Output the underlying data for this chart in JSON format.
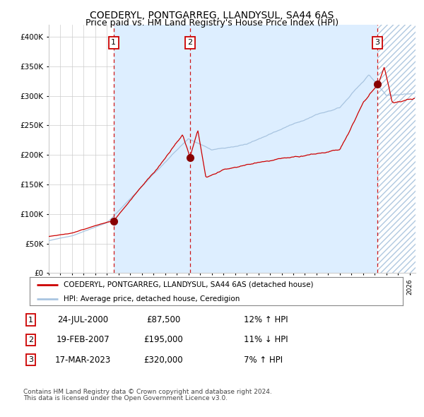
{
  "title": "COEDERYL, PONTGARREG, LLANDYSUL, SA44 6AS",
  "subtitle": "Price paid vs. HM Land Registry's House Price Index (HPI)",
  "legend_red": "COEDERYL, PONTGARREG, LLANDYSUL, SA44 6AS (detached house)",
  "legend_blue": "HPI: Average price, detached house, Ceredigion",
  "sale1_date": "24-JUL-2000",
  "sale1_price": 87500,
  "sale1_hpi": "12% ↑ HPI",
  "sale1_year": 2000.56,
  "sale2_date": "19-FEB-2007",
  "sale2_price": 195000,
  "sale2_hpi": "11% ↓ HPI",
  "sale2_year": 2007.13,
  "sale3_date": "17-MAR-2023",
  "sale3_price": 320000,
  "sale3_hpi": "7% ↑ HPI",
  "sale3_year": 2023.21,
  "footnote1": "Contains HM Land Registry data © Crown copyright and database right 2024.",
  "footnote2": "This data is licensed under the Open Government Licence v3.0.",
  "ylim_max": 420000,
  "xlim_start": 1995.0,
  "xlim_end": 2026.5,
  "hpi_color": "#a8c4e0",
  "price_color": "#cc0000",
  "dot_color": "#880000",
  "vline_color": "#cc0000",
  "shade_color": "#ddeeff",
  "hatch_color": "#b0c8e0",
  "background": "#ffffff",
  "grid_color": "#cccccc",
  "title_fontsize": 10,
  "subtitle_fontsize": 9
}
